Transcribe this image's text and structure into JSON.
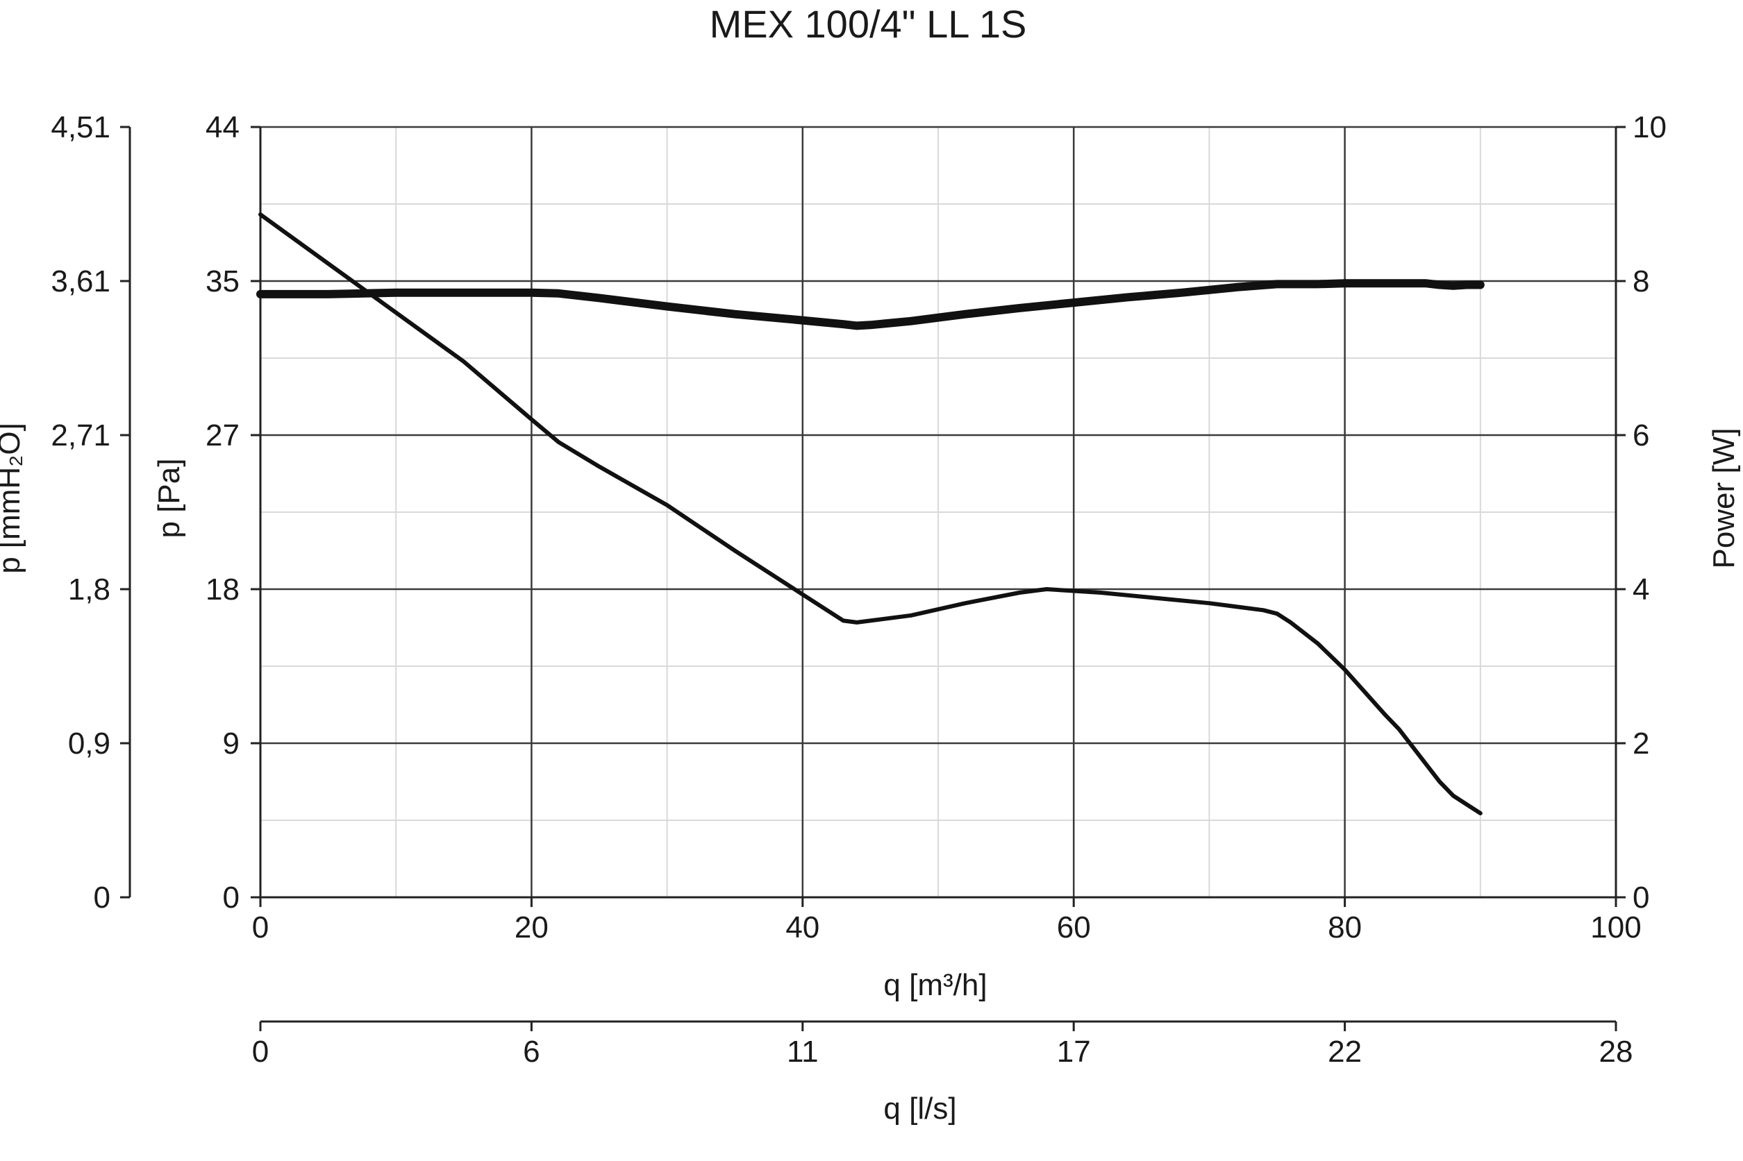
{
  "chart_data": {
    "type": "line",
    "title": "MEX 100/4\" LL 1S",
    "xlabel": "q [m³/h]",
    "xlim": [
      0,
      100
    ],
    "x_ticks": [
      "0",
      "20",
      "40",
      "60",
      "80",
      "100"
    ],
    "secondary_xlabel": "q [l/s]",
    "secondary_x_ticks": [
      "0",
      "6",
      "11",
      "17",
      "22",
      "28"
    ],
    "ylabel": "p [Pa]",
    "ylim": [
      0,
      44
    ],
    "y_ticks": [
      "0",
      "9",
      "18",
      "27",
      "35",
      "44"
    ],
    "outer_ylabel": "p [mmH₂O]",
    "outer_y_ticks": [
      "0",
      "0,9",
      "1,8",
      "2,71",
      "3,61",
      "4,51"
    ],
    "right_ylabel": "Power [W]",
    "right_ylim": [
      0,
      10
    ],
    "right_y_ticks": [
      "0",
      "2",
      "4",
      "6",
      "8",
      "10"
    ],
    "grid": true,
    "series": [
      {
        "axis": "left",
        "x": [
          0,
          5,
          10,
          15,
          20,
          22,
          25,
          30,
          35,
          40,
          43,
          44,
          45,
          48,
          52,
          56,
          58,
          62,
          66,
          70,
          74,
          75,
          76,
          78,
          80,
          83,
          84,
          86,
          87,
          88,
          89,
          90
        ],
        "values": [
          39.0,
          36.2,
          33.4,
          30.6,
          27.3,
          26.0,
          24.6,
          22.4,
          19.8,
          17.3,
          15.8,
          15.7,
          15.8,
          16.1,
          16.8,
          17.4,
          17.6,
          17.4,
          17.1,
          16.8,
          16.4,
          16.2,
          15.7,
          14.5,
          13.0,
          10.4,
          9.6,
          7.6,
          6.6,
          5.8,
          5.3,
          4.8
        ]
      },
      {
        "axis": "right",
        "x": [
          0,
          5,
          10,
          15,
          20,
          22,
          25,
          30,
          35,
          40,
          43,
          44,
          45,
          48,
          52,
          56,
          60,
          64,
          68,
          72,
          75,
          78,
          80,
          84,
          86,
          87,
          88,
          89,
          90
        ],
        "values": [
          7.83,
          7.83,
          7.85,
          7.85,
          7.85,
          7.84,
          7.78,
          7.67,
          7.57,
          7.49,
          7.44,
          7.42,
          7.43,
          7.48,
          7.57,
          7.65,
          7.72,
          7.79,
          7.85,
          7.92,
          7.96,
          7.96,
          7.97,
          7.97,
          7.97,
          7.95,
          7.94,
          7.95,
          7.95
        ]
      }
    ]
  }
}
